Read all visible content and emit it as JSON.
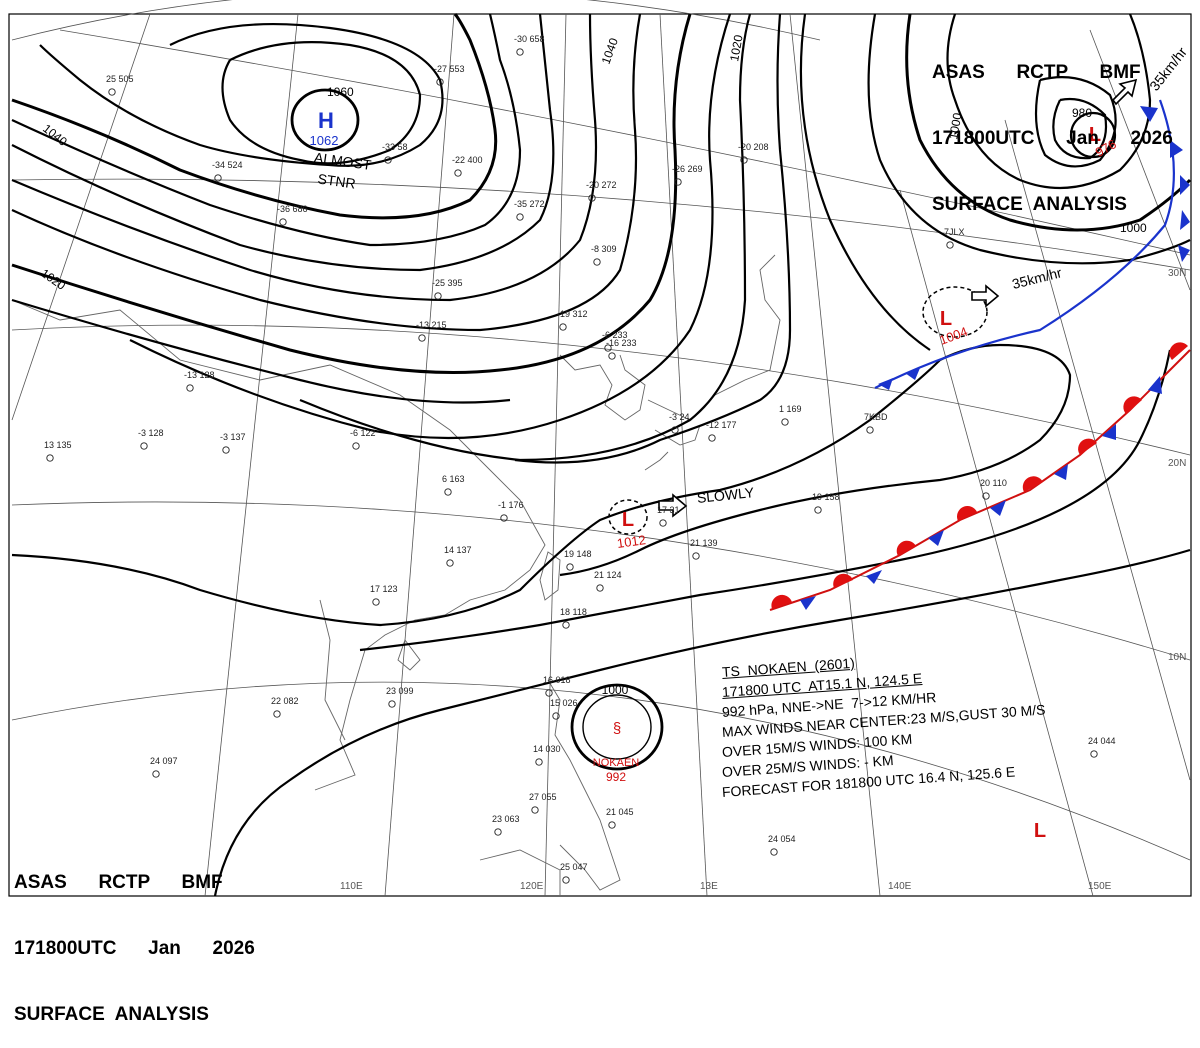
{
  "header": {
    "line1": "ASAS      RCTP      BMF",
    "line2": "171800UTC      Jan      2026",
    "line3": "SURFACE  ANALYSIS"
  },
  "map": {
    "longitude_labels": [
      "110E",
      "120E",
      "13E",
      "140E",
      "150E"
    ],
    "latitude_labels": [
      "30N",
      "20N",
      "10N"
    ],
    "isobar_labels": [
      "1060",
      "1040",
      "1040",
      "1020",
      "1020",
      "1000",
      "1000",
      "1000"
    ],
    "pressure_systems": [
      {
        "type": "H",
        "value": "1062",
        "note1": "ALMOST",
        "note2": "STNR"
      },
      {
        "type": "L",
        "value": "976",
        "isobar": "980"
      },
      {
        "type": "L",
        "value": "1004",
        "motion": "35km/hr"
      },
      {
        "type": "L",
        "value": "1012",
        "motion": "SLOWLY"
      },
      {
        "type": "L",
        "value": ""
      }
    ],
    "ne_low_motion": "35km/hr",
    "storm": {
      "name": "NOKAEN",
      "pressure": "992",
      "isobar": "1000"
    },
    "station_samples": [
      "25 505",
      "-34 524",
      "-36 686",
      "-33 58",
      "-30 658",
      "-27 553",
      "-22 400",
      "-35 272",
      "-20 272",
      "-26 269",
      "-20 208",
      "-25 395",
      "-19 312",
      "-13 215",
      "-8 309",
      "-16 233",
      "-13 128",
      "-3 128",
      "13 135",
      "-6 122",
      "-3 137",
      "6 163",
      "-1 176",
      "14 137",
      "19 148",
      "21 124",
      "17 123",
      "18 118",
      "23 099",
      "22 082",
      "24 097",
      "19 158",
      "20 110",
      "24 044",
      "24 054",
      "25 047",
      "23 063",
      "27 055",
      "21 045",
      "15 026",
      "14 030",
      "16 018",
      "17 31",
      "21 139",
      "-6 233",
      "-3 24",
      "1 169",
      "-12 177",
      "7JLX",
      "7KBD"
    ]
  },
  "bulletin": {
    "title": "TS  NOKAEN  (2601)",
    "line1": "171800 UTC  AT15.1 N, 124.5 E",
    "line2": "992 hPa, NNE->NE  7->12 KM/HR",
    "line3": "MAX WINDS NEAR CENTER:23 M/S,GUST 30 M/S",
    "line4": "OVER 15M/S WINDS: 100 KM",
    "line5": "OVER 25M/S WINDS: - KM",
    "line6": "FORECAST FOR 181800 UTC 16.4 N, 125.6 E"
  }
}
